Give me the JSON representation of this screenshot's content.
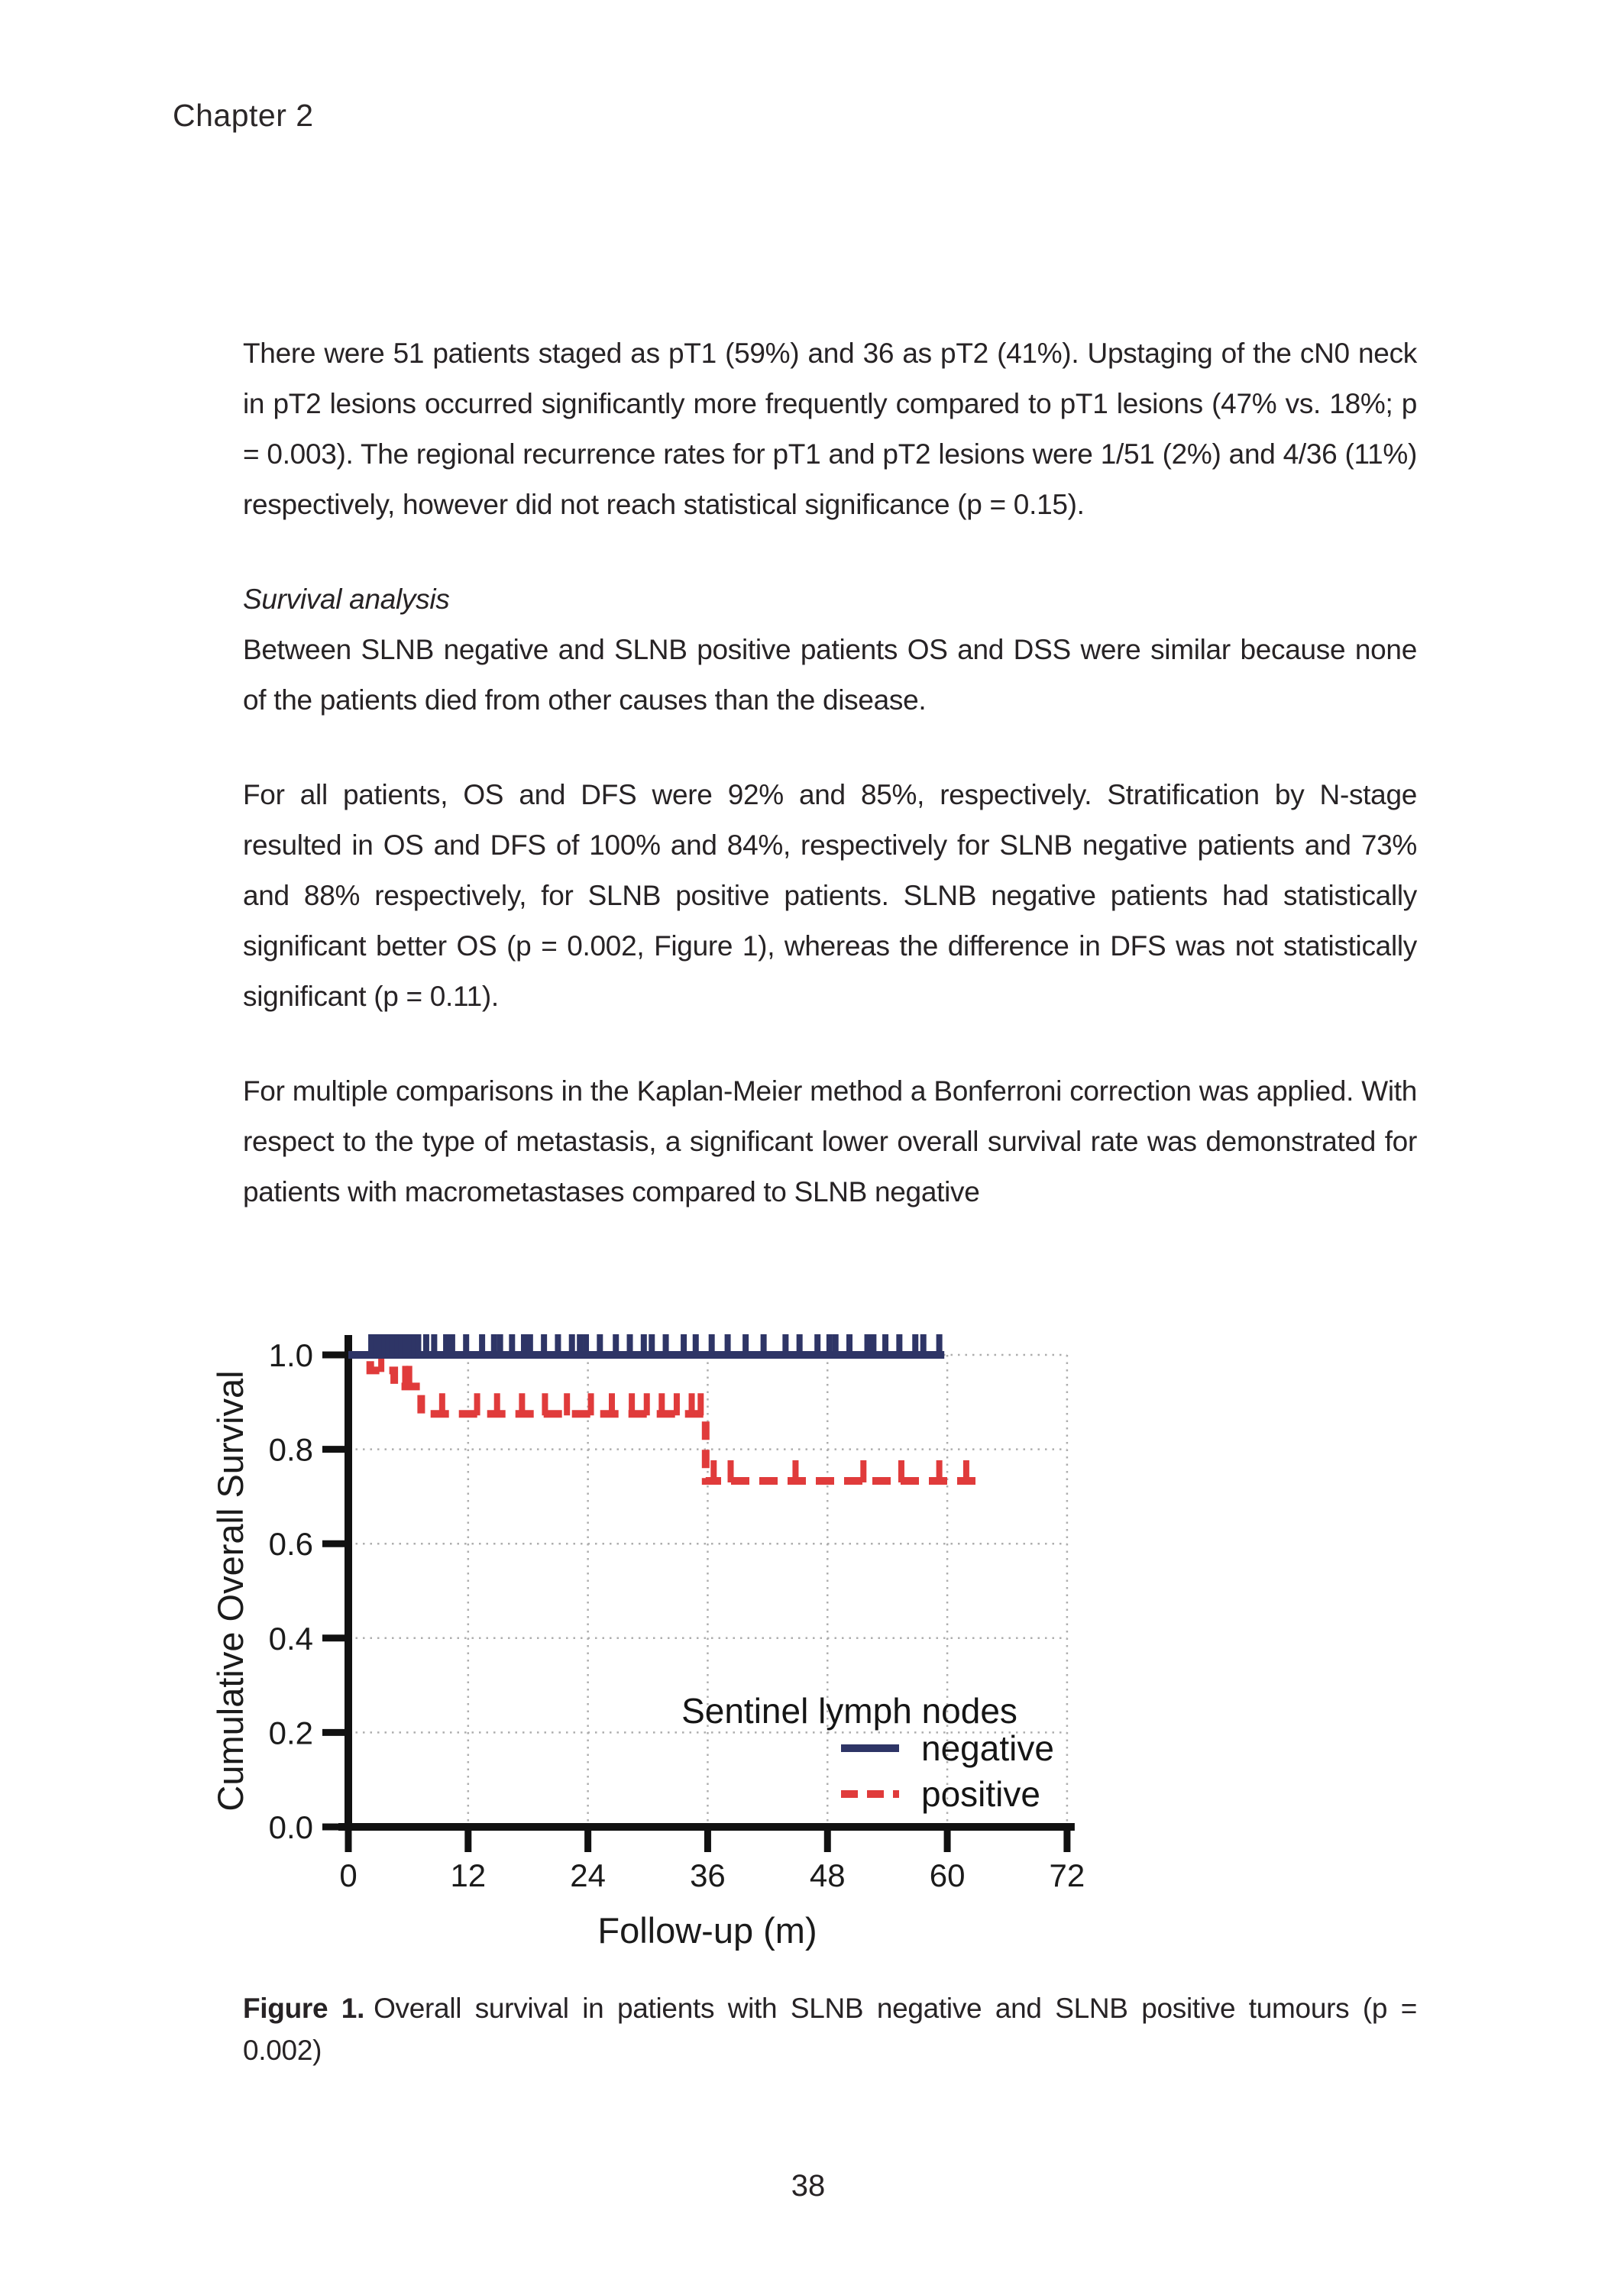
{
  "page": {
    "header": "Chapter 2",
    "page_number": "38",
    "section_heading": "Survival analysis",
    "paragraphs": [
      "There were 51 patients staged as pT1 (59%) and 36 as pT2 (41%). Upstaging of the cN0 neck in pT2 lesions occurred significantly more frequently compared to pT1 lesions (47% vs. 18%; p = 0.003). The regional recurrence rates for pT1 and pT2 lesions were 1/51 (2%) and 4/36 (11%) respectively, however did not reach statistical significance (p = 0.15).",
      "Between SLNB negative and SLNB positive patients OS and DSS were similar because none of the patients died from other causes than the disease.",
      "For all patients, OS and DFS were 92% and 85%, respectively. Stratification by N-stage resulted in OS and DFS of 100% and 84%, respectively for SLNB negative patients and 73% and 88% respectively, for SLNB positive patients. SLNB negative patients had statistically significant better OS (p = 0.002, Figure 1), whereas the difference in DFS was not statistically significant (p = 0.11).",
      "For multiple comparisons in the Kaplan-Meier method a Bonferroni correction was applied. With respect to the type of metastasis, a significant lower overall survival rate was demonstrated for patients with macrometastases compared to SLNB negative"
    ],
    "caption": {
      "label": "Figure 1.",
      "text": "Overall survival in patients with SLNB negative and SLNB positive tumours (p = 0.002)"
    }
  },
  "chart_data": {
    "type": "line",
    "variant": "kaplan-meier-step",
    "title": "",
    "xlabel": "Follow-up (m)",
    "ylabel": "Cumulative Overall Survival",
    "xlim": [
      0,
      72
    ],
    "ylim": [
      0.0,
      1.0
    ],
    "xticks": [
      "0",
      "12",
      "24",
      "36",
      "48",
      "60",
      "72"
    ],
    "yticks": [
      "0.0",
      "0.2",
      "0.4",
      "0.6",
      "0.8",
      "1.0"
    ],
    "grid": "dotted-gray",
    "grid_color": "#aeaeae",
    "axis_color": "#111111",
    "legend": {
      "title": "Sentinel lymph nodes",
      "position": "inside-lower-right",
      "entries": [
        {
          "label": "negative",
          "style": "solid",
          "color": "#2e3566"
        },
        {
          "label": "positive",
          "style": "dashed",
          "color": "#e03b3b"
        }
      ]
    },
    "series": [
      {
        "name": "positive",
        "color": "#e03b3b",
        "line_style": "dashed",
        "steps": [
          [
            0,
            1.0
          ],
          [
            2.2,
            1.0
          ],
          [
            2.2,
            0.967
          ],
          [
            4.6,
            0.967
          ],
          [
            4.6,
            0.933
          ],
          [
            7.3,
            0.933
          ],
          [
            7.3,
            0.875
          ],
          [
            35.8,
            0.875
          ],
          [
            35.8,
            0.733
          ],
          [
            63,
            0.733
          ]
        ],
        "censor_months": [
          3.3,
          5.7,
          6.1,
          9.4,
          12.9,
          14.9,
          17.4,
          19.7,
          21.9,
          24.3,
          26.4,
          28.4,
          29.9,
          31.4,
          32.9,
          34.4,
          35.3,
          36.6,
          38.3,
          44.8,
          51.6,
          55.4,
          59.2,
          61.9
        ]
      },
      {
        "name": "negative",
        "color": "#2e3566",
        "line_style": "solid",
        "steps": [
          [
            0,
            1.0
          ],
          [
            59.7,
            1.0
          ]
        ],
        "censor_months": [
          2.3,
          2.8,
          3.2,
          3.6,
          4.0,
          4.4,
          4.9,
          5.3,
          5.7,
          6.1,
          6.6,
          7.0,
          7.8,
          8.6,
          9.8,
          10.4,
          11.8,
          13.4,
          14.6,
          15.2,
          16.4,
          17.6,
          18.2,
          19.6,
          21.0,
          22.4,
          23.2,
          23.8,
          25.2,
          26.8,
          28.2,
          29.6,
          30.4,
          31.8,
          33.6,
          34.8,
          36.4,
          38.0,
          39.8,
          41.6,
          43.8,
          45.2,
          47.0,
          48.2,
          48.8,
          50.2,
          52.0,
          52.6,
          53.8,
          55.2,
          56.8,
          57.6,
          59.2
        ]
      }
    ]
  }
}
